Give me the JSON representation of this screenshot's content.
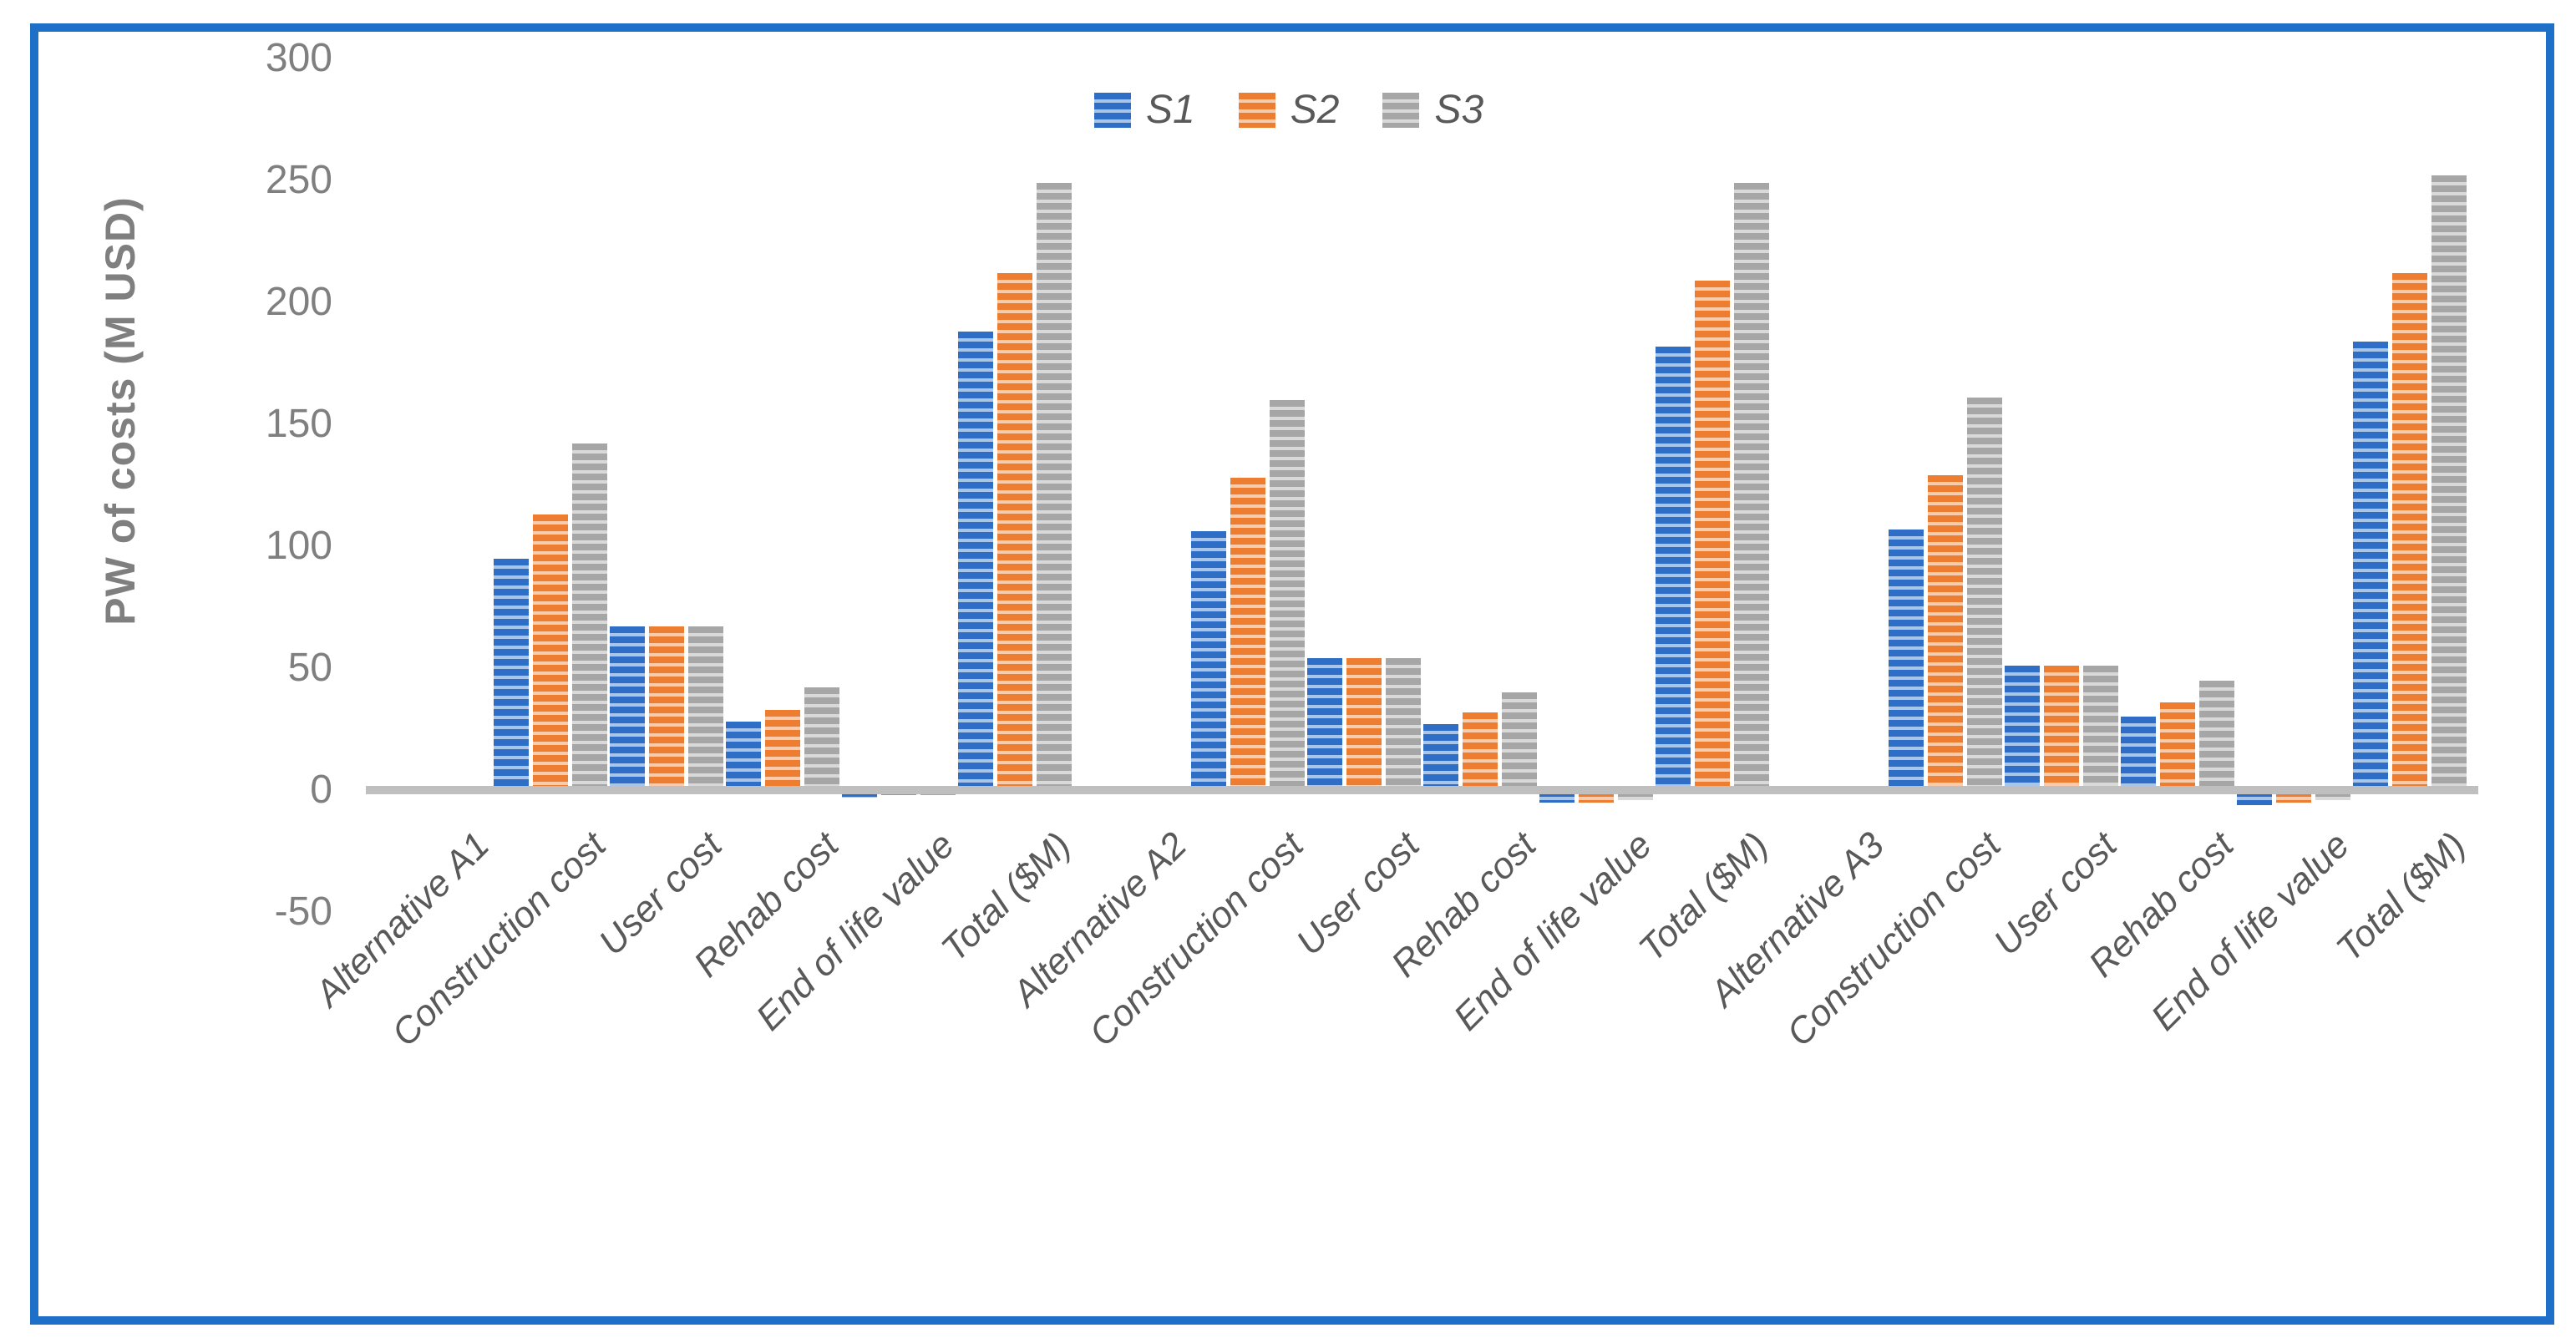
{
  "figure": {
    "border_color": "#1D6FC8",
    "background_color": "#FFFFFF"
  },
  "chart_data": {
    "type": "bar",
    "title": "",
    "xlabel": "",
    "ylabel": "PW of costs (M USD)",
    "ylim": [
      -50,
      300
    ],
    "ytick_interval": 50,
    "yticks": [
      300,
      250,
      200,
      150,
      100,
      50,
      0,
      -50
    ],
    "grid": false,
    "legend_position": "top-center",
    "axis_line_color": "#BFBFBF",
    "tick_label_color": "#7F7F7F",
    "category_label_color": "#595959",
    "bar_pattern": "horizontal-stripes",
    "categories": [
      "Alternative A1",
      "Construction cost",
      "User cost",
      "Rehab cost",
      "End of life value",
      "Total ($M)",
      "Alternative A2",
      "Construction cost",
      "User cost",
      "Rehab cost",
      "End of life value",
      "Total ($M)",
      "Alternative A3",
      "Construction cost",
      "User cost",
      "Rehab cost",
      "End of life value",
      "Total ($M)"
    ],
    "series": [
      {
        "name": "S1",
        "color": "#2E6EC6",
        "tint": "#A9C6EA",
        "values": [
          null,
          95,
          67,
          28,
          -3,
          188,
          null,
          106,
          54,
          27,
          -5,
          182,
          null,
          107,
          51,
          30,
          -6,
          184
        ]
      },
      {
        "name": "S2",
        "color": "#ED7D31",
        "tint": "#F8CBAD",
        "values": [
          null,
          113,
          67,
          33,
          -2,
          212,
          null,
          128,
          54,
          32,
          -5,
          209,
          null,
          129,
          51,
          36,
          -5,
          212
        ]
      },
      {
        "name": "S3",
        "color": "#A6A6A6",
        "tint": "#D9D9D9",
        "values": [
          null,
          142,
          67,
          42,
          -2,
          249,
          null,
          160,
          54,
          40,
          -4,
          249,
          null,
          161,
          51,
          45,
          -4,
          252
        ]
      }
    ]
  }
}
